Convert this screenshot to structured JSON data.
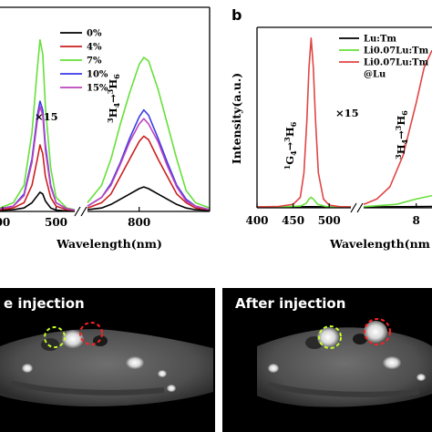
{
  "panels": {
    "a": {
      "letter": "",
      "xlabel": "Wavelength(nm)",
      "ylabel": "",
      "magnification": "×15"
    },
    "b": {
      "letter": "b",
      "xlabel": "Wavelength(nm",
      "ylabel": "Intensity(a.u.)",
      "magnification": "×15"
    }
  },
  "transitions": {
    "G4_H6": {
      "upper_base": "G",
      "upper_sup": "1",
      "upper_sub": "4",
      "lower_base": "H",
      "lower_sup": "3",
      "lower_sub": "6"
    },
    "H4_H6": {
      "upper_base": "H",
      "upper_sup": "3",
      "upper_sub": "4",
      "lower_base": "H",
      "lower_sup": "3",
      "lower_sub": "6"
    }
  },
  "ct_images": {
    "before": {
      "title": "e injection"
    },
    "after": {
      "title": "After injection"
    }
  },
  "colors": {
    "s0": "#000000",
    "s4": "#cc1f1f",
    "s7": "#66e03a",
    "s10": "#3a3ae8",
    "s15": "#bb44bb",
    "lu_tm": "#000000",
    "li_lu_tm": "#66e03a",
    "li_lu_tm_lu": "#e04545",
    "roi_green": "#c8ff2a",
    "roi_red": "#ff2020"
  },
  "chart_data": [
    {
      "type": "line",
      "x_ticks": [
        "00",
        "500",
        "800"
      ],
      "x_tick_values": [
        400,
        500,
        800
      ],
      "xlabel": "Wavelength(nm)",
      "legend_position": "top-right",
      "segments": [
        [
          395,
          535
        ],
        [
          745,
          875
        ]
      ],
      "series": [
        {
          "name": "0%",
          "color_key": "s0",
          "x": [
            395,
            420,
            440,
            455,
            465,
            470,
            475,
            480,
            490,
            500,
            520,
            535,
            745,
            760,
            770,
            780,
            790,
            800,
            805,
            810,
            820,
            830,
            840,
            850,
            860,
            875
          ],
          "y": [
            0.005,
            0.01,
            0.02,
            0.05,
            0.09,
            0.11,
            0.1,
            0.06,
            0.02,
            0.008,
            0.003,
            0.003,
            0.01,
            0.02,
            0.04,
            0.07,
            0.1,
            0.13,
            0.14,
            0.13,
            0.1,
            0.07,
            0.04,
            0.02,
            0.01,
            0.005
          ]
        },
        {
          "name": "4%",
          "color_key": "s4",
          "x": [
            395,
            420,
            440,
            455,
            465,
            470,
            475,
            480,
            490,
            500,
            520,
            535,
            745,
            760,
            770,
            780,
            790,
            800,
            805,
            810,
            820,
            830,
            840,
            850,
            860,
            875
          ],
          "y": [
            0.01,
            0.02,
            0.05,
            0.15,
            0.3,
            0.38,
            0.33,
            0.2,
            0.08,
            0.03,
            0.01,
            0.005,
            0.02,
            0.05,
            0.1,
            0.2,
            0.3,
            0.4,
            0.43,
            0.41,
            0.3,
            0.2,
            0.1,
            0.05,
            0.02,
            0.01
          ]
        },
        {
          "name": "7%",
          "color_key": "s7",
          "x": [
            395,
            420,
            440,
            455,
            465,
            470,
            475,
            480,
            490,
            500,
            520,
            535,
            745,
            760,
            770,
            780,
            790,
            800,
            805,
            810,
            820,
            830,
            840,
            850,
            860,
            875
          ],
          "y": [
            0.02,
            0.05,
            0.15,
            0.45,
            0.82,
            0.98,
            0.9,
            0.6,
            0.25,
            0.08,
            0.02,
            0.01,
            0.05,
            0.15,
            0.3,
            0.5,
            0.68,
            0.84,
            0.88,
            0.86,
            0.7,
            0.5,
            0.3,
            0.12,
            0.05,
            0.02
          ]
        },
        {
          "name": "10%",
          "color_key": "s10",
          "x": [
            395,
            420,
            440,
            455,
            465,
            470,
            475,
            480,
            490,
            500,
            520,
            535,
            745,
            760,
            770,
            780,
            790,
            800,
            805,
            810,
            820,
            830,
            840,
            850,
            860,
            875
          ],
          "y": [
            0.015,
            0.03,
            0.1,
            0.3,
            0.55,
            0.63,
            0.58,
            0.38,
            0.15,
            0.05,
            0.015,
            0.008,
            0.03,
            0.08,
            0.16,
            0.28,
            0.42,
            0.54,
            0.58,
            0.55,
            0.42,
            0.28,
            0.15,
            0.07,
            0.03,
            0.01
          ]
        },
        {
          "name": "15%",
          "color_key": "s15",
          "x": [
            395,
            420,
            440,
            455,
            465,
            470,
            475,
            480,
            490,
            500,
            520,
            535,
            745,
            760,
            770,
            780,
            790,
            800,
            805,
            810,
            820,
            830,
            840,
            850,
            860,
            875
          ],
          "y": [
            0.015,
            0.03,
            0.09,
            0.28,
            0.52,
            0.6,
            0.55,
            0.35,
            0.14,
            0.05,
            0.015,
            0.008,
            0.03,
            0.08,
            0.15,
            0.27,
            0.4,
            0.5,
            0.53,
            0.5,
            0.4,
            0.26,
            0.14,
            0.06,
            0.03,
            0.01
          ]
        }
      ]
    },
    {
      "type": "line",
      "x_ticks": [
        "400",
        "450",
        "500",
        "8"
      ],
      "x_tick_values": [
        400,
        450,
        500,
        800
      ],
      "xlabel": "Wavelength(nm",
      "ylabel": "Intensity(a.u.)",
      "legend_position": "top-right",
      "segments": [
        [
          400,
          530
        ],
        [
          760,
          812
        ]
      ],
      "series": [
        {
          "name": "Lu:Tm",
          "color_key": "lu_tm",
          "x": [
            400,
            450,
            470,
            480,
            500,
            530,
            760,
            790,
            812
          ],
          "y": [
            0.005,
            0.005,
            0.006,
            0.006,
            0.005,
            0.005,
            0.005,
            0.006,
            0.008
          ]
        },
        {
          "name": "Li0.07Lu:Tm",
          "color_key": "li_lu_tm",
          "x": [
            400,
            440,
            460,
            468,
            472,
            475,
            478,
            484,
            495,
            510,
            530,
            760,
            785,
            800,
            812
          ],
          "y": [
            0.005,
            0.006,
            0.01,
            0.025,
            0.05,
            0.06,
            0.05,
            0.02,
            0.008,
            0.005,
            0.005,
            0.006,
            0.02,
            0.05,
            0.07
          ]
        },
        {
          "name": "Li0.07Lu:Tm\n@Lu",
          "color_key": "li_lu_tm_lu",
          "x": [
            400,
            430,
            450,
            460,
            465,
            469,
            472,
            475,
            478,
            481,
            485,
            492,
            500,
            515,
            530,
            760,
            770,
            780,
            790,
            800,
            806,
            812
          ],
          "y": [
            0.005,
            0.008,
            0.02,
            0.06,
            0.2,
            0.5,
            0.8,
            0.97,
            0.8,
            0.5,
            0.2,
            0.05,
            0.015,
            0.006,
            0.005,
            0.02,
            0.05,
            0.12,
            0.3,
            0.6,
            0.8,
            0.9
          ]
        }
      ]
    }
  ]
}
